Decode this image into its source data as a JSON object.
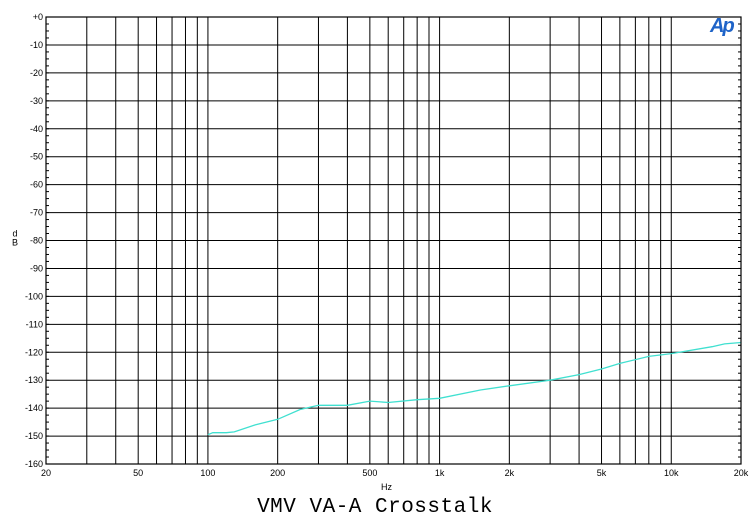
{
  "caption": "VMV VA-A Crosstalk",
  "logo_text": "Ap",
  "colors": {
    "trace": "#40e0d0",
    "grid": "#000000",
    "logo": "#1e63c8"
  },
  "chart_data": {
    "type": "line",
    "title": "VMV VA-A Crosstalk",
    "xlabel": "Hz",
    "ylabel": "dB",
    "xscale": "log",
    "xlim": [
      20,
      20000
    ],
    "ylim": [
      -160,
      0
    ],
    "grid": true,
    "x_ticks": [
      {
        "value": 20,
        "label": "20"
      },
      {
        "value": 50,
        "label": "50"
      },
      {
        "value": 100,
        "label": "100"
      },
      {
        "value": 200,
        "label": "200"
      },
      {
        "value": 500,
        "label": "500"
      },
      {
        "value": 1000,
        "label": "1k"
      },
      {
        "value": 2000,
        "label": "2k"
      },
      {
        "value": 5000,
        "label": "5k"
      },
      {
        "value": 10000,
        "label": "10k"
      },
      {
        "value": 20000,
        "label": "20k"
      }
    ],
    "y_ticks": [
      0,
      -10,
      -20,
      -30,
      -40,
      -50,
      -60,
      -70,
      -80,
      -90,
      -100,
      -110,
      -120,
      -130,
      -140,
      -150,
      -160
    ],
    "y_tick_labels": [
      "+0",
      "-10",
      "-20",
      "-30",
      "-40",
      "-50",
      "-60",
      "-70",
      "-80",
      "-90",
      "-100",
      "-110",
      "-120",
      "-130",
      "-140",
      "-150",
      "-160"
    ],
    "series": [
      {
        "x": [
          100,
          105,
          120,
          130,
          160,
          200,
          250,
          300,
          400,
          500,
          600,
          800,
          1000,
          1500,
          2000,
          3000,
          4000,
          5000,
          6000,
          8000,
          10000,
          15000,
          17000,
          20000
        ],
        "y": [
          -149.5,
          -148.8,
          -148.8,
          -148.5,
          -146,
          -144,
          -140.5,
          -139,
          -139,
          -137.5,
          -138,
          -137,
          -136.5,
          -133.5,
          -132,
          -130,
          -128,
          -126,
          -124,
          -121.5,
          -120.5,
          -118,
          -117,
          -116.5
        ]
      }
    ]
  }
}
